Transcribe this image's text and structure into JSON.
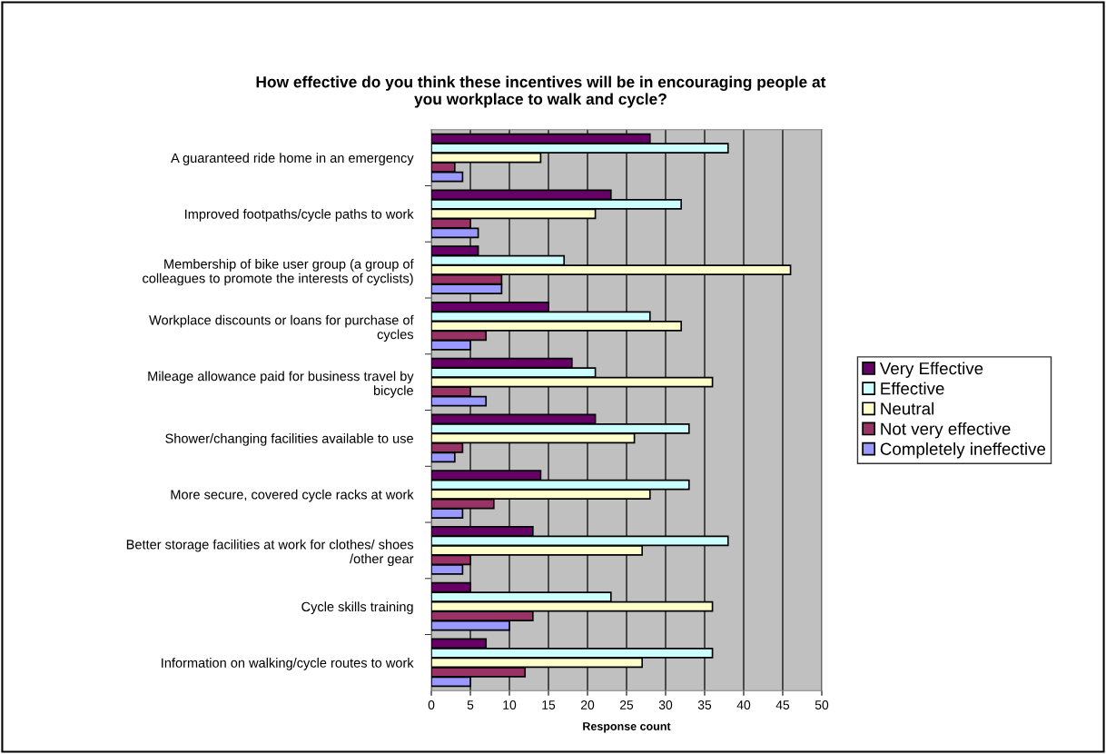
{
  "chart_data": {
    "type": "bar",
    "orientation": "horizontal",
    "title": "How effective do you think these incentives will be in encouraging people at\nyou workplace to walk and cycle?",
    "xlabel": "Response count",
    "categories": [
      "A guaranteed ride home in an emergency",
      "Improved footpaths/cycle paths to work",
      "Membership of bike user group (a group of\ncolleagues to promote the interests of cyclists)",
      "Workplace discounts or loans for purchase of\ncycles",
      "Mileage allowance paid for business travel by\nbicycle",
      "Shower/changing facilities available to use",
      "More secure, covered cycle racks at work",
      "Better storage facilities at work for clothes/ shoes\n/other gear",
      "Cycle skills training",
      "Information on walking/cycle routes to work"
    ],
    "series": [
      {
        "name": "Very Effective",
        "color": "#660066",
        "values": [
          28,
          23,
          6,
          15,
          18,
          21,
          14,
          13,
          5,
          7
        ]
      },
      {
        "name": "Effective",
        "color": "#ccffff",
        "values": [
          38,
          32,
          17,
          28,
          21,
          33,
          33,
          38,
          23,
          36
        ]
      },
      {
        "name": "Neutral",
        "color": "#ffffcc",
        "values": [
          14,
          21,
          46,
          32,
          36,
          26,
          28,
          27,
          36,
          27
        ]
      },
      {
        "name": "Not very effective",
        "color": "#993366",
        "values": [
          3,
          5,
          9,
          7,
          5,
          4,
          8,
          5,
          13,
          12
        ]
      },
      {
        "name": "Completely ineffective",
        "color": "#9999ff",
        "values": [
          4,
          6,
          9,
          5,
          7,
          3,
          4,
          4,
          10,
          5
        ]
      }
    ],
    "xlim": [
      0,
      50
    ],
    "xticks": [
      0,
      5,
      10,
      15,
      20,
      25,
      30,
      35,
      40,
      45,
      50
    ],
    "grid": "x",
    "legend": "right"
  }
}
